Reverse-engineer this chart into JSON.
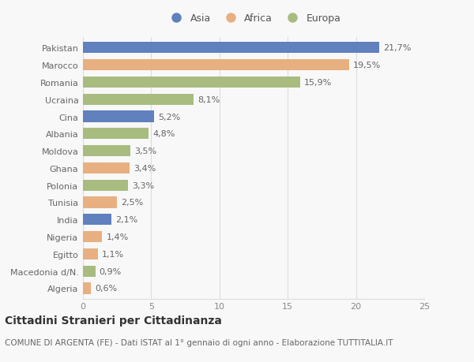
{
  "categories": [
    "Pakistan",
    "Marocco",
    "Romania",
    "Ucraina",
    "Cina",
    "Albania",
    "Moldova",
    "Ghana",
    "Polonia",
    "Tunisia",
    "India",
    "Nigeria",
    "Egitto",
    "Macedonia d/N.",
    "Algeria"
  ],
  "values": [
    21.7,
    19.5,
    15.9,
    8.1,
    5.2,
    4.8,
    3.5,
    3.4,
    3.3,
    2.5,
    2.1,
    1.4,
    1.1,
    0.9,
    0.6
  ],
  "labels": [
    "21,7%",
    "19,5%",
    "15,9%",
    "8,1%",
    "5,2%",
    "4,8%",
    "3,5%",
    "3,4%",
    "3,3%",
    "2,5%",
    "2,1%",
    "1,4%",
    "1,1%",
    "0,9%",
    "0,6%"
  ],
  "continents": [
    "Asia",
    "Africa",
    "Europa",
    "Europa",
    "Asia",
    "Europa",
    "Europa",
    "Africa",
    "Europa",
    "Africa",
    "Asia",
    "Africa",
    "Africa",
    "Europa",
    "Africa"
  ],
  "colors": {
    "Asia": "#6080be",
    "Africa": "#e8b080",
    "Europa": "#a8bc80"
  },
  "legend_labels": [
    "Asia",
    "Africa",
    "Europa"
  ],
  "xlim": [
    0,
    25
  ],
  "xticks": [
    0,
    5,
    10,
    15,
    20,
    25
  ],
  "title": "Cittadini Stranieri per Cittadinanza",
  "subtitle": "COMUNE DI ARGENTA (FE) - Dati ISTAT al 1° gennaio di ogni anno - Elaborazione TUTTITALIA.IT",
  "background_color": "#f8f8f8",
  "bar_height": 0.65,
  "label_fontsize": 8,
  "title_fontsize": 10,
  "subtitle_fontsize": 7.5,
  "tick_fontsize": 8,
  "legend_fontsize": 9
}
